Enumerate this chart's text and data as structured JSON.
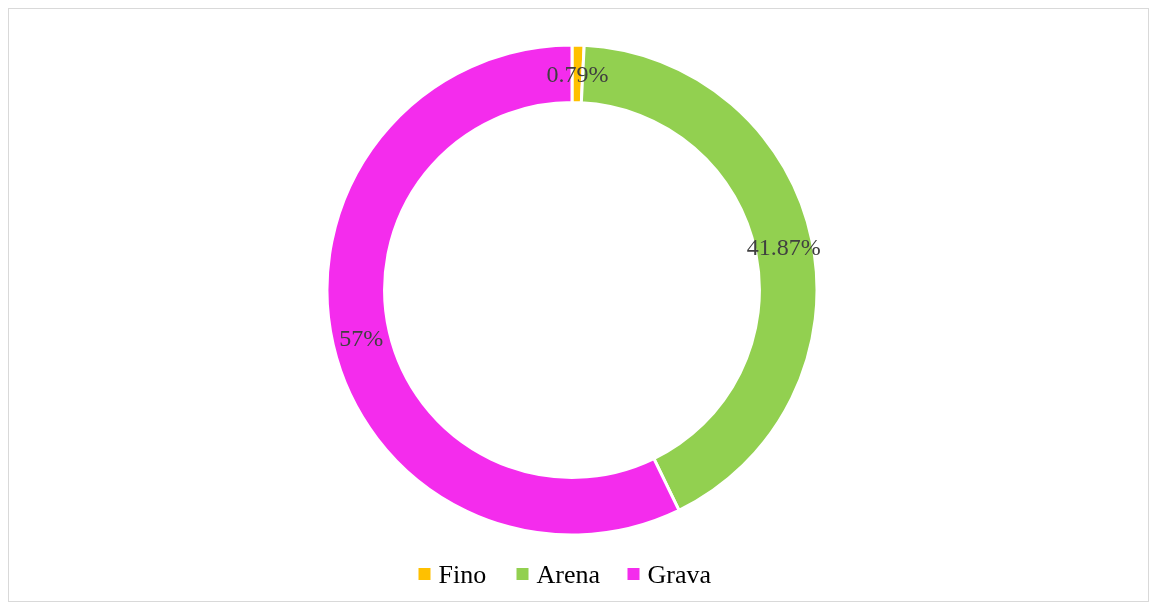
{
  "chart_data": {
    "type": "donut",
    "categories": [
      "Fino",
      "Arena",
      "Grava"
    ],
    "values": [
      0.79,
      41.87,
      57
    ],
    "colors": [
      "#ffc000",
      "#92d050",
      "#f42ced"
    ],
    "value_labels": [
      "0.79%",
      "41.87%",
      "57%"
    ],
    "legend": "bottom"
  }
}
